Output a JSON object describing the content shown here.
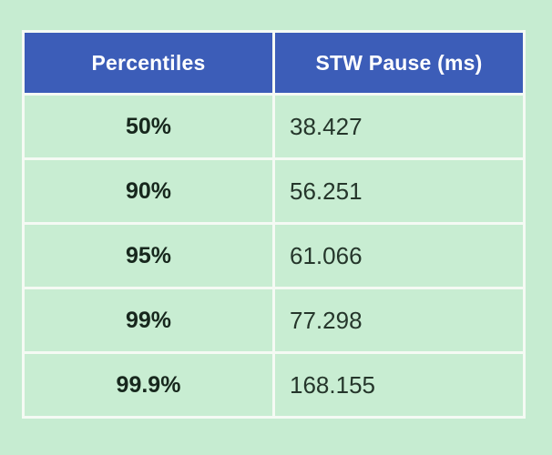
{
  "chart_data": {
    "type": "table",
    "title": "",
    "columns": [
      "Percentiles",
      "STW Pause (ms)"
    ],
    "rows": [
      [
        "50%",
        "38.427"
      ],
      [
        "90%",
        "56.251"
      ],
      [
        "95%",
        "61.066"
      ],
      [
        "99%",
        "77.298"
      ],
      [
        "99.9%",
        "168.155"
      ]
    ]
  },
  "colors": {
    "page_background": "#c6ecd1",
    "header_background": "#3c5db8",
    "header_text": "#ffffff",
    "cell_background": "#c8edd2",
    "border": "#f5faf4",
    "percent_text": "#17271d",
    "value_text": "#25362b"
  }
}
